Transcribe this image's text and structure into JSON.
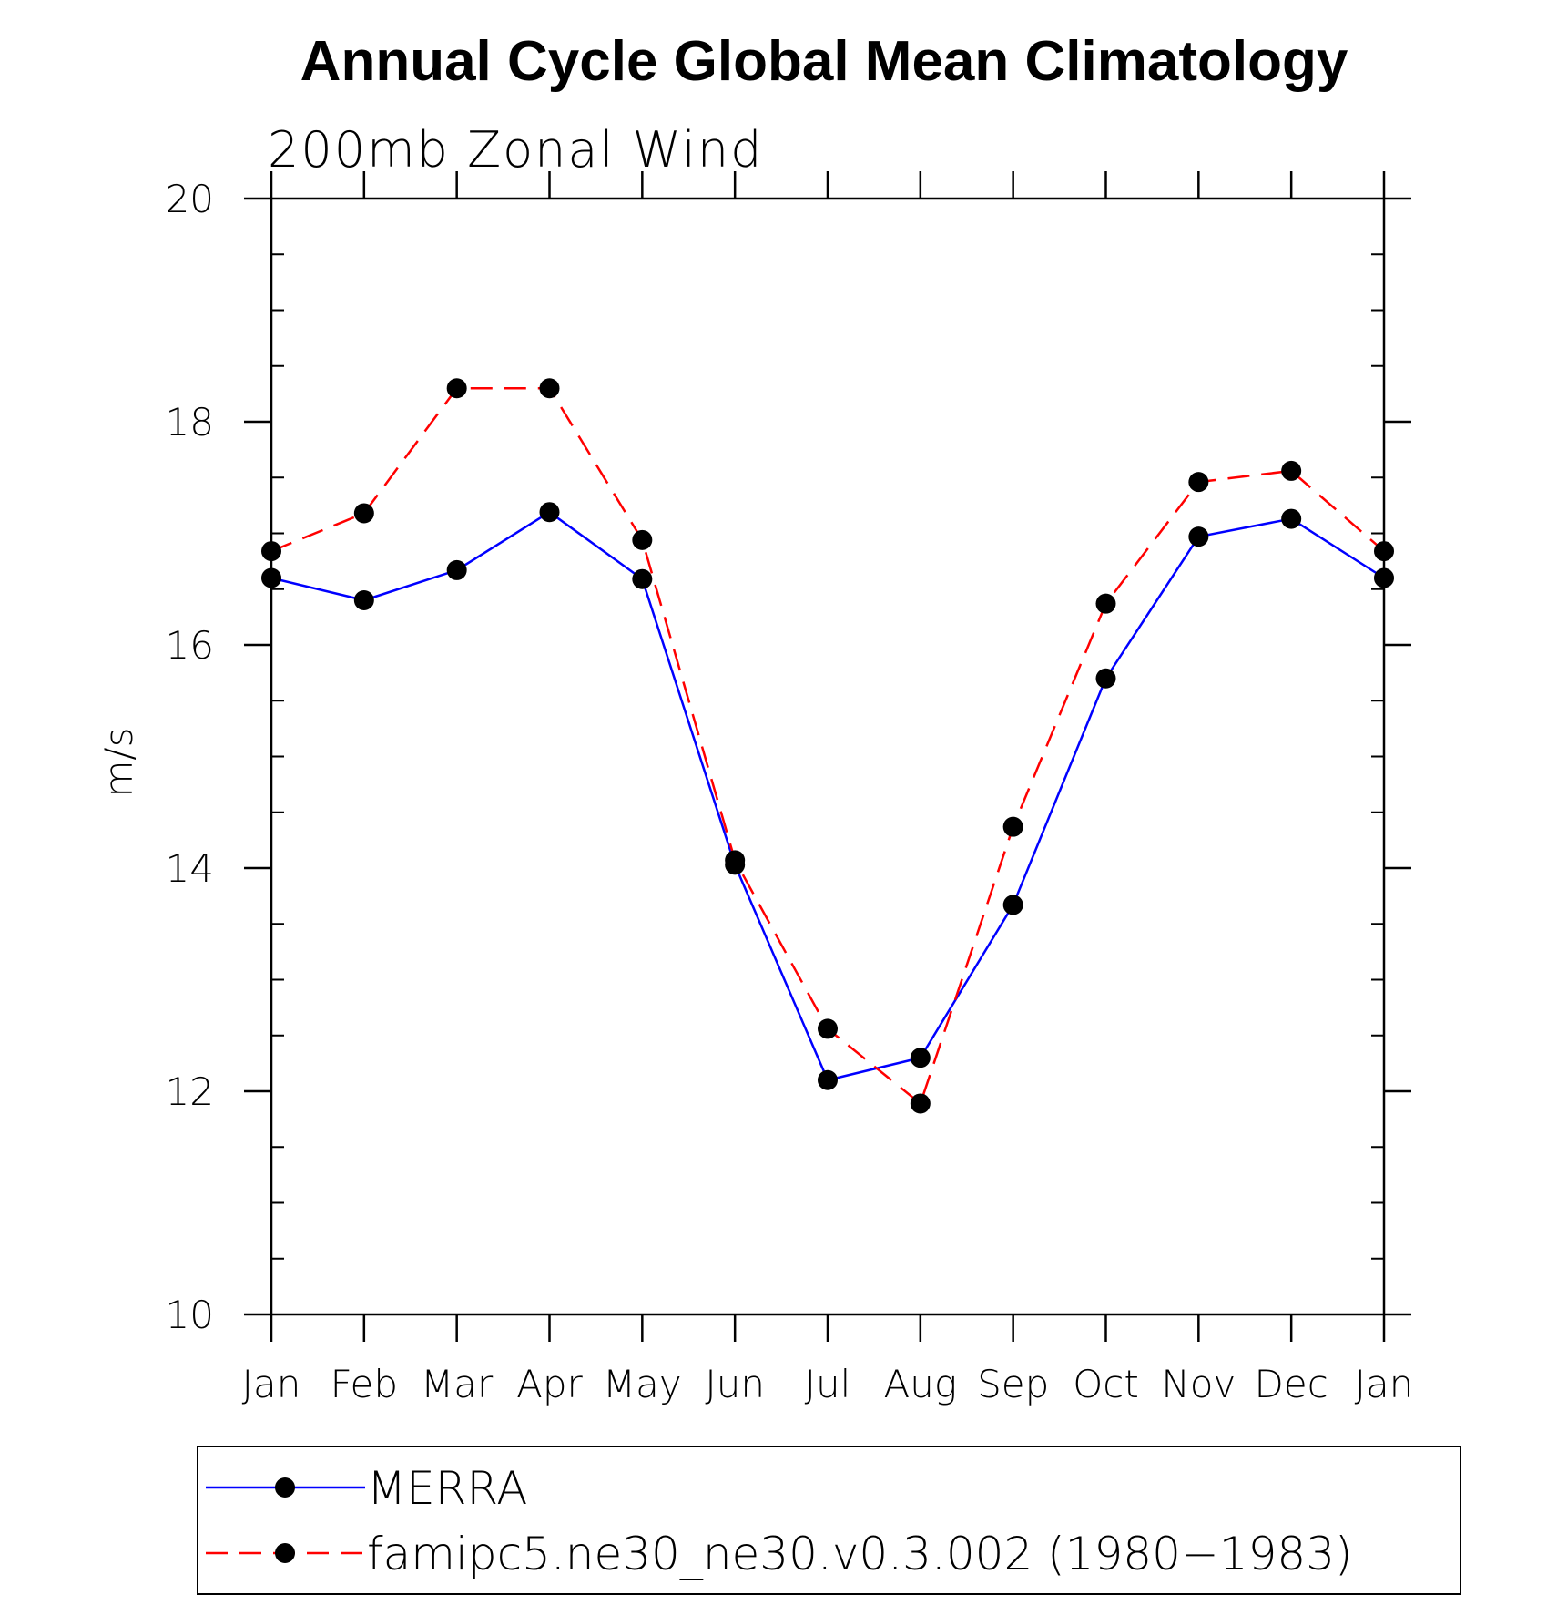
{
  "chart_data": {
    "type": "line",
    "title": "Annual Cycle Global Mean Climatology",
    "subtitle": "200mb Zonal Wind",
    "xlabel": "",
    "ylabel": "m/s",
    "categories": [
      "Jan",
      "Feb",
      "Mar",
      "Apr",
      "May",
      "Jun",
      "Jul",
      "Aug",
      "Sep",
      "Oct",
      "Nov",
      "Dec",
      "Jan"
    ],
    "ylim": [
      10,
      20
    ],
    "yticks": [
      "10",
      "12",
      "14",
      "16",
      "18",
      "20"
    ],
    "grid": false,
    "legend_position": "bottom",
    "series": [
      {
        "name": "MERRA",
        "color": "#0000ff",
        "line_style": "solid",
        "marker": "filled-circle",
        "values": [
          16.6,
          16.4,
          16.67,
          17.19,
          16.59,
          14.03,
          12.1,
          12.3,
          13.67,
          15.7,
          16.97,
          17.13,
          16.6
        ]
      },
      {
        "name": "famipc5.ne30_ne30.v0.3.002 (1980−1983)",
        "color": "#ff0000",
        "line_style": "dashed",
        "marker": "filled-circle",
        "values": [
          16.84,
          17.18,
          18.3,
          18.3,
          16.94,
          14.07,
          12.56,
          11.89,
          14.37,
          16.37,
          17.46,
          17.56,
          16.84
        ]
      }
    ]
  }
}
